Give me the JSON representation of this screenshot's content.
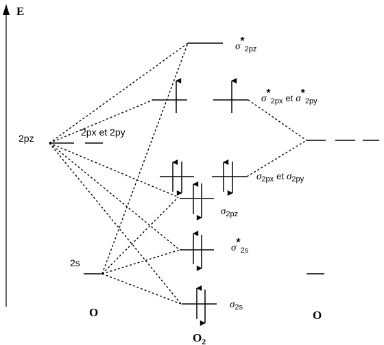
{
  "axis": {
    "label": "E"
  },
  "atoms": {
    "left": "O",
    "right": "O",
    "molecule": {
      "base": "O",
      "subscript": "2"
    }
  },
  "atomic_orbitals": {
    "left_2p": "2pz",
    "left_2p_other": "2px et 2py",
    "left_2s": "2s"
  },
  "molecular_orbitals": {
    "sigma_star_2pz": {
      "symbol": "σ",
      "star": "*",
      "sub": "2pz"
    },
    "pi_star_2p": {
      "symbol": "σ",
      "star": "*",
      "sub": "2px",
      "joiner": "et",
      "symbol2": "σ",
      "star2": "*",
      "sub2": "2py"
    },
    "pi_2p": {
      "symbol": "σ",
      "sub": "2px",
      "joiner": "et",
      "symbol2": "σ",
      "sub2": "2py"
    },
    "sigma_2pz": {
      "symbol": "σ",
      "sub": "2pz"
    },
    "sigma_star_2s": {
      "symbol": "σ",
      "star": "*",
      "sub": "2s"
    },
    "sigma_2s": {
      "symbol": "σ",
      "sub": "2s"
    }
  }
}
